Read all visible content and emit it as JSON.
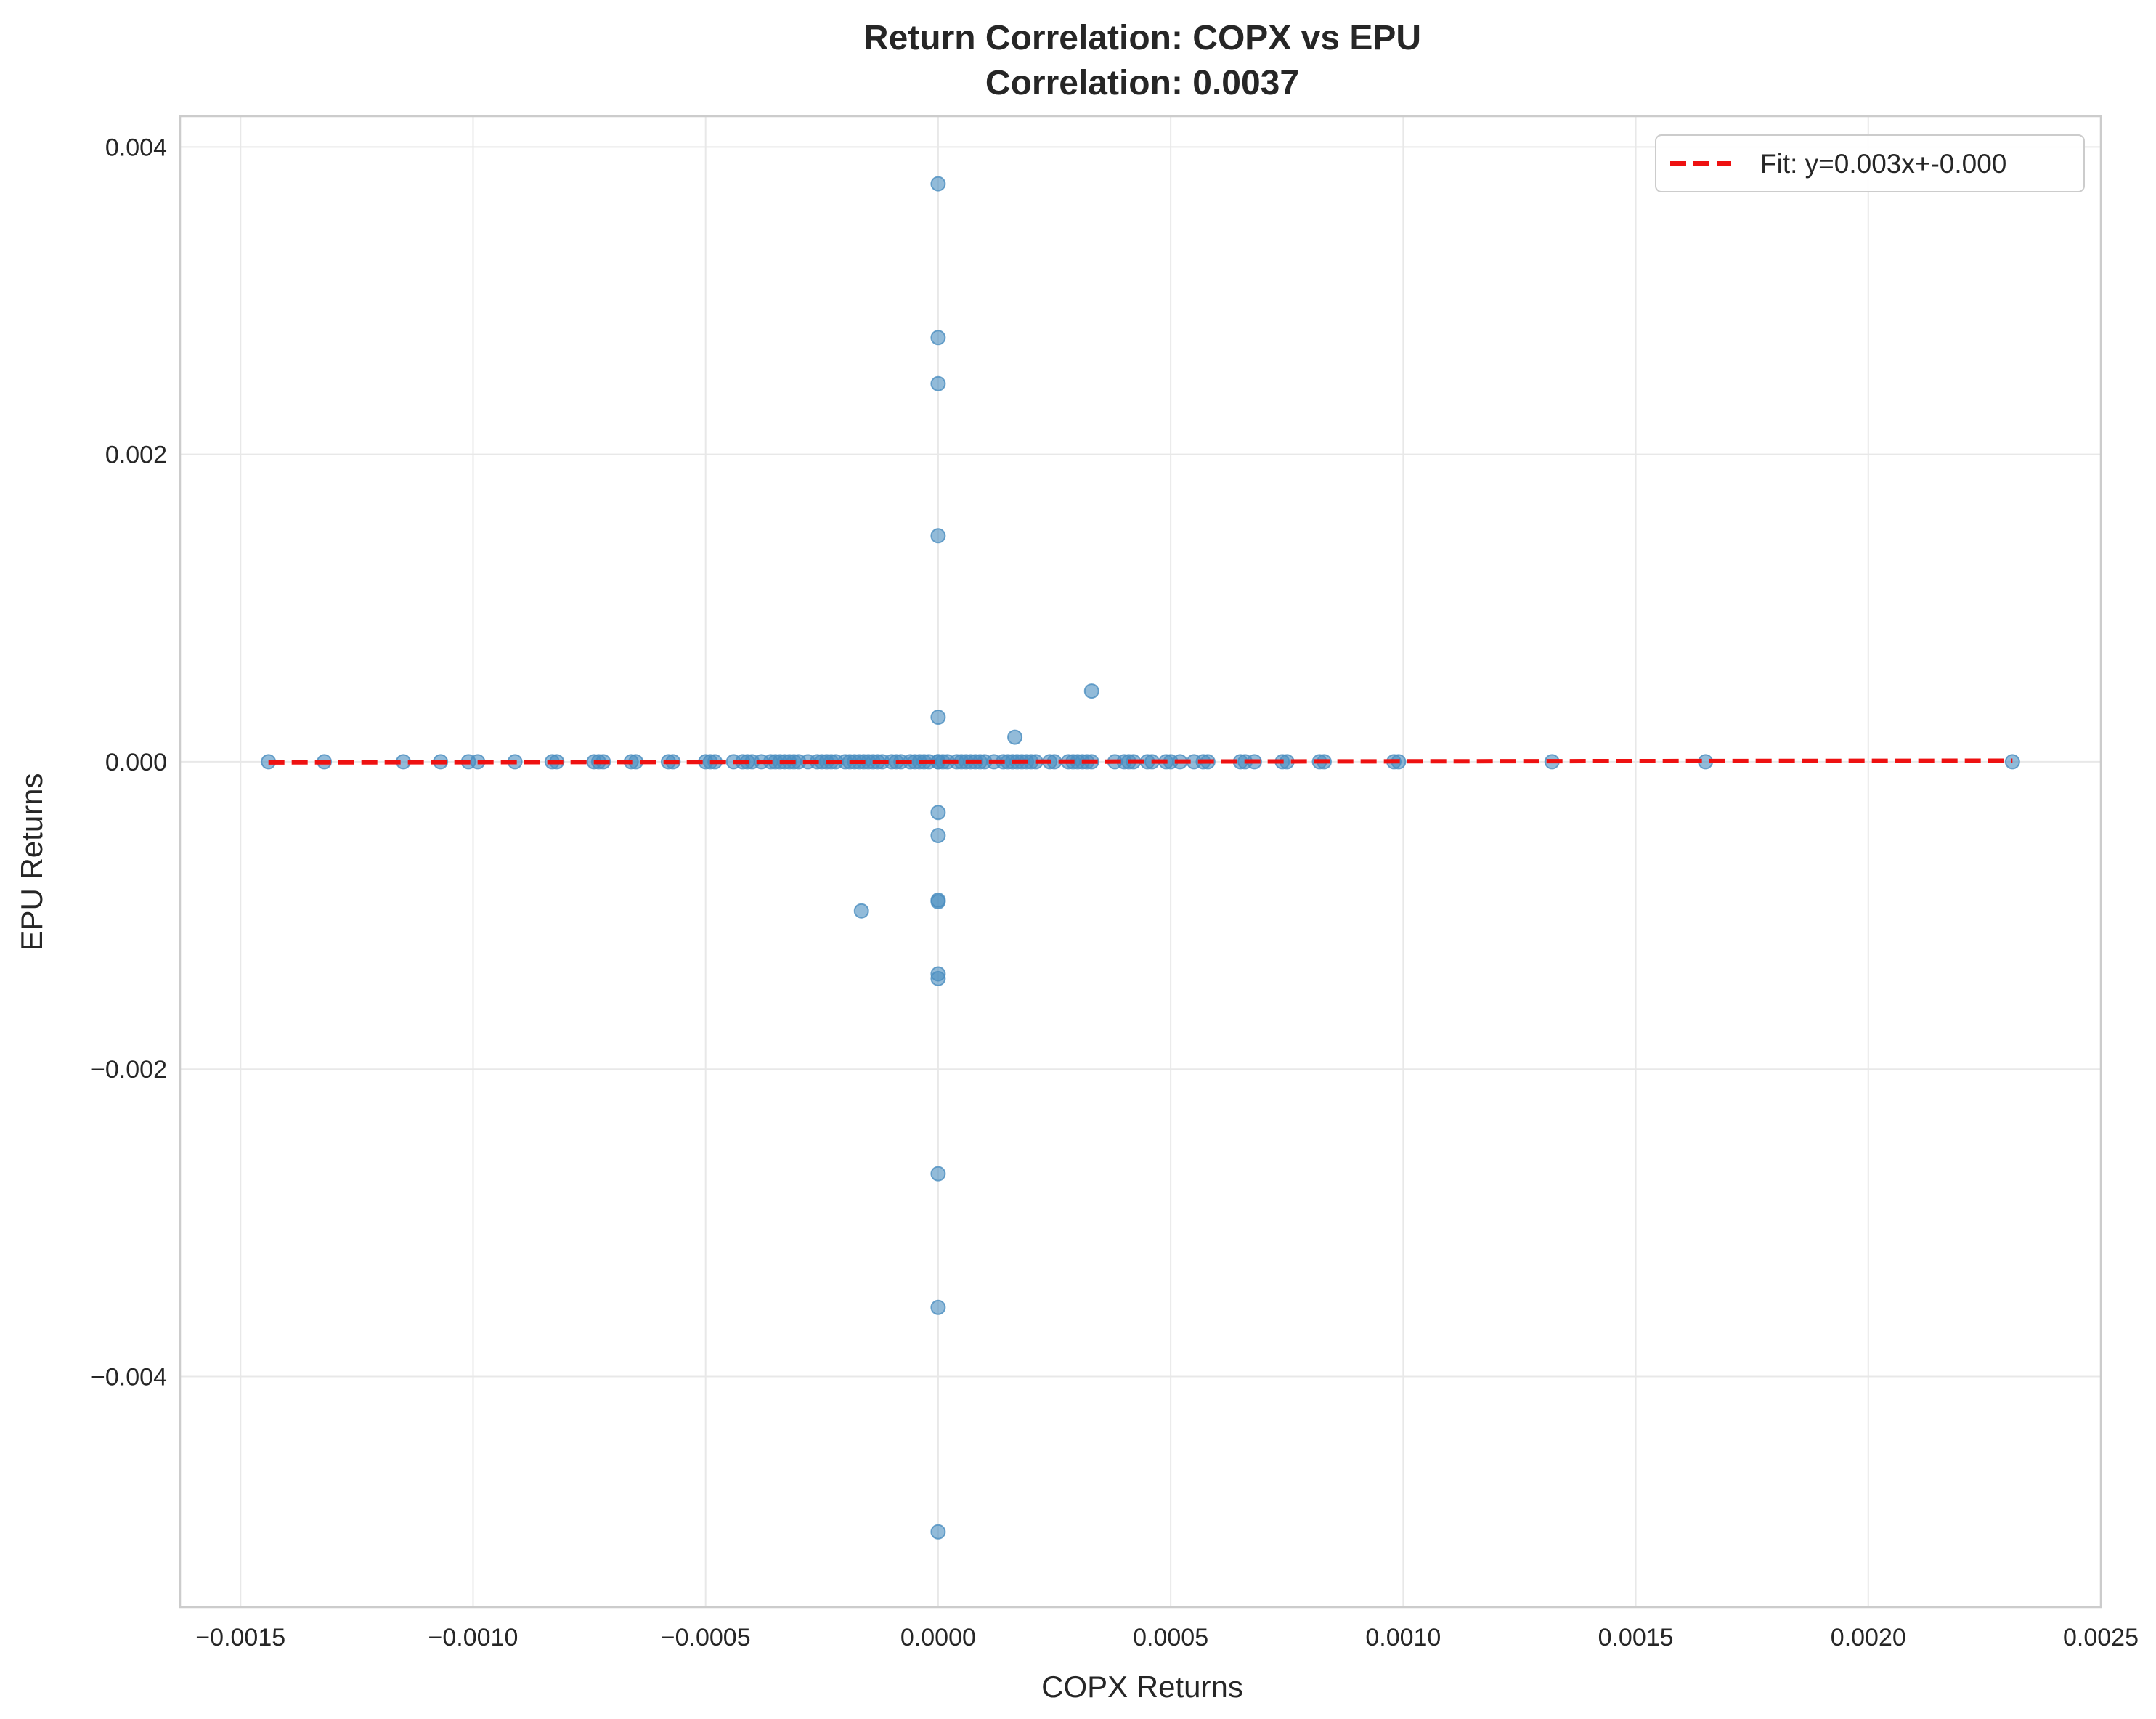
{
  "chart_data": {
    "type": "scatter",
    "title": "Return Correlation: COPX vs EPU",
    "subtitle": "Correlation: 0.0037",
    "xlabel": "COPX Returns",
    "ylabel": "EPU Returns",
    "xlim": [
      -0.00163,
      0.0025
    ],
    "ylim": [
      -0.0055,
      0.0042
    ],
    "x_ticks": [
      -0.0015,
      -0.001,
      -0.0005,
      0.0,
      0.0005,
      0.001,
      0.0015,
      0.002,
      0.0025
    ],
    "x_tick_labels": [
      "−0.0015",
      "−0.0010",
      "−0.0005",
      "0.0000",
      "0.0005",
      "0.0010",
      "0.0015",
      "0.0020",
      "0.0025"
    ],
    "y_ticks": [
      -0.004,
      -0.002,
      0.0,
      0.002,
      0.004
    ],
    "y_tick_labels": [
      "−0.004",
      "−0.002",
      "0.000",
      "0.002",
      "0.004"
    ],
    "grid": true,
    "legend_position": "top-right",
    "series": [
      {
        "name": "COPX vs EPU returns",
        "kind": "scatter",
        "color": "#4a8dbf",
        "x": [
          -0.00144,
          -0.00132,
          -0.00115,
          -0.00107,
          -0.00101,
          -0.00099,
          -0.00091,
          -0.00083,
          -0.00082,
          -0.00074,
          -0.00073,
          -0.00072,
          -0.00066,
          -0.00065,
          -0.00058,
          -0.00057,
          -0.0005,
          -0.00049,
          -0.00048,
          -0.00044,
          -0.00042,
          -0.00041,
          -0.0004,
          -0.00038,
          -0.00036,
          -0.00035,
          -0.00034,
          -0.00033,
          -0.00032,
          -0.00031,
          -0.0003,
          -0.00028,
          -0.00026,
          -0.00025,
          -0.00024,
          -0.00023,
          -0.00022,
          -0.0002,
          -0.00019,
          -0.00018,
          -0.00017,
          -0.00016,
          -0.00015,
          -0.00014,
          -0.00013,
          -0.00012,
          -0.0001,
          -9e-05,
          -8e-05,
          -6e-05,
          -5e-05,
          -4e-05,
          -3e-05,
          -2e-05,
          1e-05,
          2e-05,
          4e-05,
          5e-05,
          6e-05,
          7e-05,
          8e-05,
          9e-05,
          0.0001,
          0.00012,
          0.00014,
          0.00015,
          0.00016,
          0.00017,
          0.00018,
          0.00019,
          0.0002,
          0.00021,
          0.00024,
          0.00025,
          0.00028,
          0.00029,
          0.0003,
          0.00031,
          0.00032,
          0.00033,
          0.00038,
          0.0004,
          0.00041,
          0.00042,
          0.00045,
          0.00046,
          0.00049,
          0.0005,
          0.00052,
          0.00055,
          0.00057,
          0.00058,
          0.00065,
          0.00066,
          0.00068,
          0.00074,
          0.00075,
          0.00082,
          0.00083,
          0.00098,
          0.00099,
          0.00132,
          0.00165,
          0.00231,
          0.0,
          0.0,
          0.0,
          0.0,
          0.0,
          0.0,
          0.0,
          0.0,
          0.0,
          0.0,
          0.0,
          0.0,
          0.0,
          0.0,
          0.0,
          0.0,
          0.000165,
          0.00033,
          -0.000165
        ],
        "y": [
          0,
          0,
          0,
          0,
          0,
          0,
          0,
          0,
          0,
          0,
          0,
          0,
          0,
          0,
          0,
          0,
          0,
          0,
          0,
          0,
          0,
          0,
          0,
          0,
          0,
          0,
          0,
          0,
          0,
          0,
          0,
          0,
          0,
          0,
          0,
          0,
          0,
          0,
          0,
          0,
          0,
          0,
          0,
          0,
          0,
          0,
          0,
          0,
          0,
          0,
          0,
          0,
          0,
          0,
          0,
          0,
          0,
          0,
          0,
          0,
          0,
          0,
          0,
          0,
          0,
          0,
          0,
          0,
          0,
          0,
          0,
          0,
          0,
          0,
          0,
          0,
          0,
          0,
          0,
          0,
          0,
          0,
          0,
          0,
          0,
          0,
          0,
          0,
          0,
          0,
          0,
          0,
          0,
          0,
          0,
          0,
          0,
          0,
          0,
          0,
          0,
          0,
          0,
          0,
          0.00376,
          0.00276,
          0.00246,
          0.00147,
          0.00029,
          0.0,
          -0.00033,
          -0.00048,
          -0.0009,
          -0.00091,
          -0.00138,
          -0.00141,
          -0.00268,
          -0.00355,
          -0.00501,
          0.0,
          0.00016,
          0.00046,
          -0.00097
        ]
      },
      {
        "name": "Fit: y=0.003x+-0.000",
        "kind": "line",
        "style": "dashed",
        "color": "#ee1111",
        "slope": 0.003,
        "intercept": 0.0,
        "x_range": [
          -0.00144,
          0.00231
        ]
      }
    ]
  }
}
